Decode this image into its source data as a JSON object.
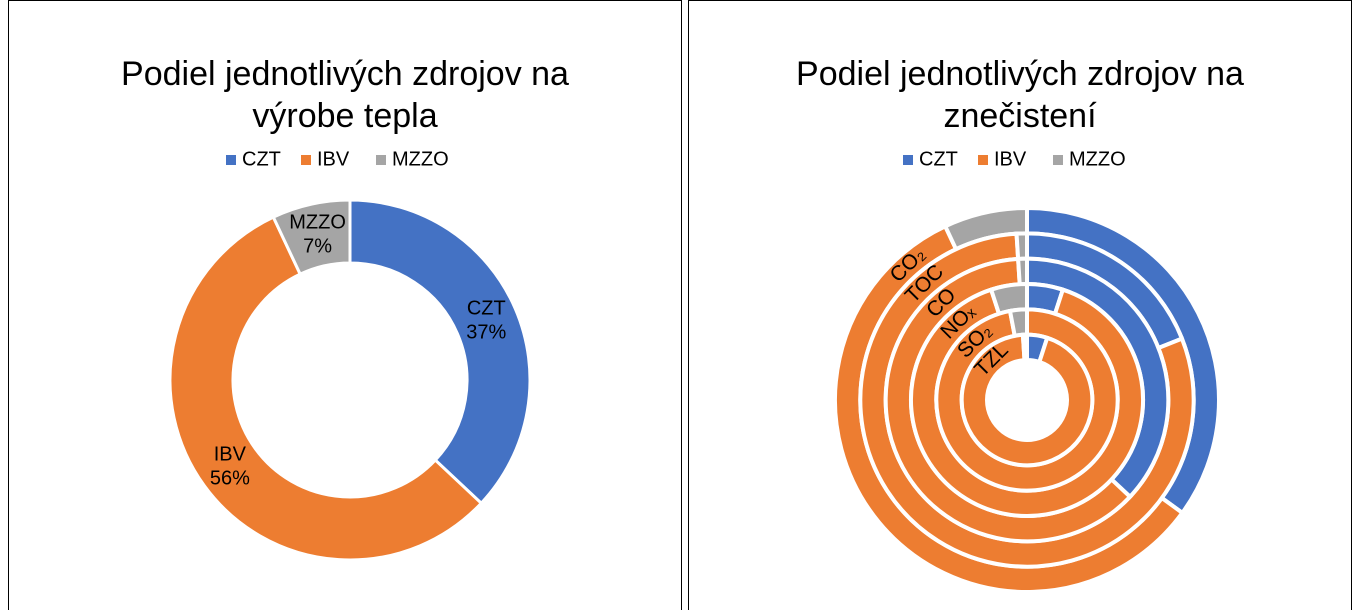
{
  "chart_data": [
    {
      "type": "donut",
      "title": "Podiel jednotlivých zdrojov na výrobe tepla",
      "categories": [
        "CZT",
        "IBV",
        "MZZO"
      ],
      "values": [
        37,
        56,
        7
      ],
      "value_labels": [
        "37%",
        "56%",
        "7%"
      ],
      "colors": [
        "#4472c4",
        "#ed7d31",
        "#a5a5a5"
      ],
      "legend": "top"
    },
    {
      "type": "multi-donut",
      "title": "Podiel jednotlivých zdrojov na znečistení",
      "categories": [
        "CO₂",
        "TOC",
        "CO",
        "NOₓ",
        "SO₂",
        "TZL"
      ],
      "series": [
        {
          "name": "CZT",
          "color": "#4472c4",
          "values": [
            35,
            19,
            37,
            5,
            0,
            5
          ]
        },
        {
          "name": "IBV",
          "color": "#ed7d31",
          "values": [
            58,
            80,
            62,
            90,
            97,
            94
          ]
        },
        {
          "name": "MZZO",
          "color": "#a5a5a5",
          "values": [
            7,
            1,
            1,
            5,
            3,
            1
          ]
        }
      ],
      "legend": "top"
    }
  ]
}
